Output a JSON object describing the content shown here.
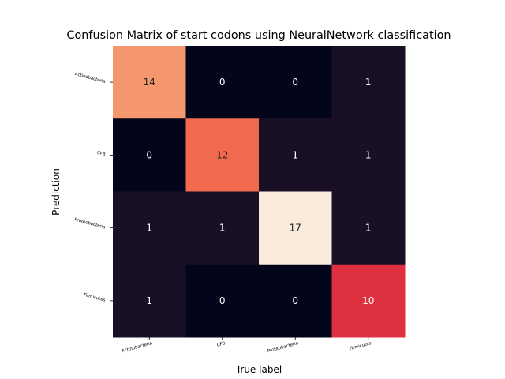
{
  "chart_data": {
    "type": "heatmap",
    "title": "Confusion Matrix of start codons using NeuralNetwork classification",
    "xlabel": "True label",
    "ylabel": "Prediction",
    "x_categories": [
      "Actinobacteria",
      "CFB",
      "Proteobacteria",
      "Firmicutes"
    ],
    "y_categories": [
      "Actinobacteria",
      "CFB",
      "Proteobacteria",
      "Firmicutes"
    ],
    "values": [
      [
        14,
        0,
        0,
        1
      ],
      [
        0,
        12,
        1,
        1
      ],
      [
        1,
        1,
        17,
        1
      ],
      [
        1,
        0,
        0,
        10
      ]
    ],
    "vmin": 0,
    "vmax": 17,
    "colormap": "rocket",
    "colorbar": false,
    "grid": false
  }
}
